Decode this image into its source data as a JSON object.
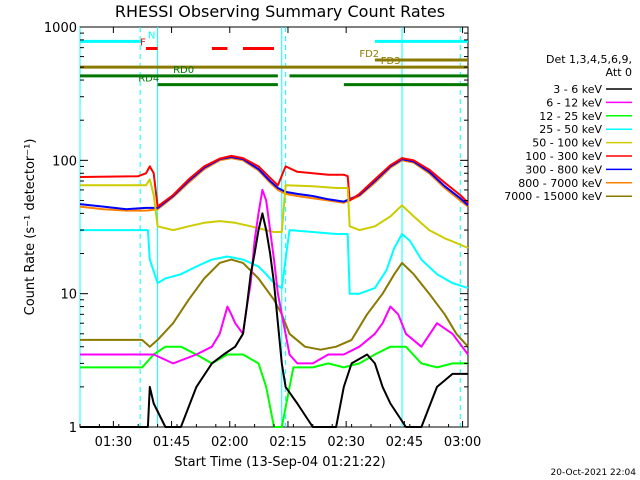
{
  "chart_data": {
    "type": "line",
    "title": "RHESSI Observing Summary Count Rates",
    "xlabel": "Start Time (13-Sep-04 01:21:22)",
    "ylabel": "Count Rate (s⁻¹ detector⁻¹)",
    "x_unit": "minutes after 01:21:22",
    "xlim": [
      0,
      100
    ],
    "ylim": [
      1,
      1000
    ],
    "y_scale": "log",
    "x_ticks": [
      {
        "x": 8.6,
        "label": "01:30"
      },
      {
        "x": 23.6,
        "label": "01:45"
      },
      {
        "x": 38.6,
        "label": "02:00"
      },
      {
        "x": 53.6,
        "label": "02:15"
      },
      {
        "x": 68.6,
        "label": "02:30"
      },
      {
        "x": 83.6,
        "label": "02:45"
      },
      {
        "x": 98.6,
        "label": "03:00"
      }
    ],
    "y_ticks": [
      {
        "y": 1,
        "label": "1"
      },
      {
        "y": 10,
        "label": "10"
      },
      {
        "y": 100,
        "label": "100"
      },
      {
        "y": 1000,
        "label": "1000"
      }
    ],
    "legend_header": [
      "Det 1,3,4,5,6,9,",
      "Att 0"
    ],
    "series": [
      {
        "name": "3 - 6 keV",
        "color": "#000000",
        "points": [
          [
            0,
            1
          ],
          [
            17.5,
            1
          ],
          [
            18,
            2
          ],
          [
            19,
            1.5
          ],
          [
            22,
            1
          ],
          [
            26,
            1
          ],
          [
            30,
            2
          ],
          [
            34,
            3
          ],
          [
            37,
            3.5
          ],
          [
            40,
            4
          ],
          [
            42,
            5
          ],
          [
            43,
            8
          ],
          [
            44,
            14
          ],
          [
            45,
            20
          ],
          [
            46,
            30
          ],
          [
            47,
            40
          ],
          [
            48,
            30
          ],
          [
            49,
            20
          ],
          [
            50,
            12
          ],
          [
            51,
            6
          ],
          [
            52,
            3
          ],
          [
            53,
            2
          ],
          [
            56,
            1.5
          ],
          [
            60,
            1
          ],
          [
            66,
            1
          ],
          [
            68,
            2
          ],
          [
            70,
            3
          ],
          [
            74,
            3.5
          ],
          [
            76,
            3
          ],
          [
            78,
            2
          ],
          [
            80,
            1.5
          ],
          [
            84,
            1
          ],
          [
            88,
            1
          ],
          [
            92,
            2
          ],
          [
            96,
            2.5
          ],
          [
            100,
            2.5
          ]
        ]
      },
      {
        "name": "6 - 12 keV",
        "color": "#ff00ff",
        "points": [
          [
            0,
            3.5
          ],
          [
            16,
            3.5
          ],
          [
            19,
            3.5
          ],
          [
            24,
            3
          ],
          [
            30,
            3.5
          ],
          [
            34,
            4
          ],
          [
            36,
            5
          ],
          [
            38,
            8
          ],
          [
            39,
            7
          ],
          [
            40,
            6
          ],
          [
            42,
            5
          ],
          [
            43,
            8
          ],
          [
            44,
            12
          ],
          [
            45,
            25
          ],
          [
            46,
            40
          ],
          [
            47,
            60
          ],
          [
            48,
            50
          ],
          [
            49,
            30
          ],
          [
            50,
            18
          ],
          [
            51,
            10
          ],
          [
            52,
            7
          ],
          [
            53,
            5
          ],
          [
            54,
            3.5
          ],
          [
            56,
            3
          ],
          [
            60,
            3
          ],
          [
            64,
            3.5
          ],
          [
            68,
            3.5
          ],
          [
            72,
            4
          ],
          [
            76,
            5
          ],
          [
            78,
            6
          ],
          [
            80,
            8
          ],
          [
            82,
            7
          ],
          [
            84,
            5
          ],
          [
            88,
            4
          ],
          [
            92,
            6
          ],
          [
            96,
            5
          ],
          [
            100,
            3.5
          ]
        ]
      },
      {
        "name": "12 - 25 keV",
        "color": "#00ff00",
        "points": [
          [
            0,
            2.8
          ],
          [
            16,
            2.8
          ],
          [
            19,
            3.5
          ],
          [
            22,
            4
          ],
          [
            26,
            4
          ],
          [
            30,
            3.5
          ],
          [
            34,
            3
          ],
          [
            38,
            3.5
          ],
          [
            42,
            3.5
          ],
          [
            46,
            3
          ],
          [
            48,
            2
          ],
          [
            50,
            1
          ],
          [
            52,
            1
          ],
          [
            55,
            2.8
          ],
          [
            60,
            2.8
          ],
          [
            64,
            3
          ],
          [
            68,
            2.8
          ],
          [
            72,
            3
          ],
          [
            76,
            3.5
          ],
          [
            80,
            4
          ],
          [
            84,
            4
          ],
          [
            88,
            3
          ],
          [
            92,
            2.8
          ],
          [
            96,
            3
          ],
          [
            100,
            3
          ]
        ]
      },
      {
        "name": "25 - 50 keV",
        "color": "#00ffff",
        "points": [
          [
            0,
            30
          ],
          [
            17.5,
            30
          ],
          [
            18,
            18
          ],
          [
            20,
            12
          ],
          [
            22,
            13
          ],
          [
            26,
            14
          ],
          [
            30,
            16
          ],
          [
            34,
            18
          ],
          [
            38,
            19
          ],
          [
            42,
            18
          ],
          [
            46,
            16
          ],
          [
            48,
            14
          ],
          [
            50,
            12
          ],
          [
            52,
            11
          ],
          [
            54,
            30
          ],
          [
            60,
            29
          ],
          [
            66,
            28
          ],
          [
            69,
            28
          ],
          [
            69.5,
            10
          ],
          [
            72,
            10
          ],
          [
            76,
            11
          ],
          [
            79,
            15
          ],
          [
            81,
            22
          ],
          [
            83,
            28
          ],
          [
            85,
            25
          ],
          [
            88,
            18
          ],
          [
            92,
            14
          ],
          [
            96,
            12
          ],
          [
            100,
            11
          ]
        ]
      },
      {
        "name": "50 - 100 keV",
        "color": "#cccc00",
        "points": [
          [
            0,
            65
          ],
          [
            17,
            65
          ],
          [
            18,
            72
          ],
          [
            19,
            55
          ],
          [
            20,
            32
          ],
          [
            24,
            30
          ],
          [
            28,
            32
          ],
          [
            32,
            34
          ],
          [
            36,
            35
          ],
          [
            40,
            34
          ],
          [
            44,
            32
          ],
          [
            48,
            30
          ],
          [
            50,
            29
          ],
          [
            52,
            29
          ],
          [
            53,
            65
          ],
          [
            60,
            64
          ],
          [
            66,
            62
          ],
          [
            69,
            62
          ],
          [
            69.5,
            32
          ],
          [
            72,
            30
          ],
          [
            76,
            32
          ],
          [
            80,
            38
          ],
          [
            83,
            46
          ],
          [
            86,
            38
          ],
          [
            90,
            30
          ],
          [
            94,
            26
          ],
          [
            97,
            24
          ],
          [
            100,
            22
          ]
        ]
      },
      {
        "name": "100 - 300 keV",
        "color": "#ff0000",
        "points": [
          [
            0,
            75
          ],
          [
            15,
            76
          ],
          [
            17,
            80
          ],
          [
            18,
            90
          ],
          [
            19,
            80
          ],
          [
            20,
            45
          ],
          [
            24,
            55
          ],
          [
            28,
            72
          ],
          [
            32,
            90
          ],
          [
            36,
            103
          ],
          [
            39,
            108
          ],
          [
            42,
            104
          ],
          [
            46,
            90
          ],
          [
            49,
            74
          ],
          [
            51,
            65
          ],
          [
            53,
            90
          ],
          [
            56,
            82
          ],
          [
            60,
            80
          ],
          [
            64,
            78
          ],
          [
            68,
            78
          ],
          [
            69,
            76
          ],
          [
            69.5,
            50
          ],
          [
            72,
            56
          ],
          [
            76,
            72
          ],
          [
            80,
            92
          ],
          [
            83,
            104
          ],
          [
            86,
            100
          ],
          [
            90,
            85
          ],
          [
            94,
            68
          ],
          [
            98,
            55
          ],
          [
            100,
            48
          ]
        ]
      },
      {
        "name": "300 - 800 keV",
        "color": "#0000ff",
        "points": [
          [
            0,
            47
          ],
          [
            6,
            45
          ],
          [
            12,
            43
          ],
          [
            17,
            44
          ],
          [
            20,
            44
          ],
          [
            24,
            54
          ],
          [
            28,
            70
          ],
          [
            32,
            88
          ],
          [
            36,
            102
          ],
          [
            39,
            106
          ],
          [
            42,
            102
          ],
          [
            46,
            86
          ],
          [
            49,
            70
          ],
          [
            51,
            62
          ],
          [
            53,
            58
          ],
          [
            56,
            56
          ],
          [
            60,
            54
          ],
          [
            64,
            51
          ],
          [
            68,
            49
          ],
          [
            72,
            55
          ],
          [
            76,
            70
          ],
          [
            80,
            90
          ],
          [
            83,
            102
          ],
          [
            86,
            98
          ],
          [
            90,
            82
          ],
          [
            94,
            64
          ],
          [
            98,
            52
          ],
          [
            100,
            46
          ]
        ]
      },
      {
        "name": "800 - 7000 keV",
        "color": "#ff8000",
        "points": [
          [
            0,
            45
          ],
          [
            6,
            43
          ],
          [
            12,
            42
          ],
          [
            17,
            42
          ],
          [
            20,
            43
          ],
          [
            24,
            53
          ],
          [
            28,
            68
          ],
          [
            32,
            86
          ],
          [
            36,
            100
          ],
          [
            39,
            104
          ],
          [
            42,
            100
          ],
          [
            46,
            84
          ],
          [
            49,
            68
          ],
          [
            51,
            60
          ],
          [
            53,
            56
          ],
          [
            56,
            54
          ],
          [
            60,
            52
          ],
          [
            64,
            50
          ],
          [
            68,
            48
          ],
          [
            72,
            54
          ],
          [
            76,
            68
          ],
          [
            80,
            88
          ],
          [
            83,
            100
          ],
          [
            86,
            96
          ],
          [
            90,
            80
          ],
          [
            94,
            62
          ],
          [
            98,
            50
          ],
          [
            100,
            45
          ]
        ]
      },
      {
        "name": "7000 - 15000 keV",
        "color": "#8b7a00",
        "points": [
          [
            0,
            4.5
          ],
          [
            10,
            4.5
          ],
          [
            16,
            4.5
          ],
          [
            18,
            4
          ],
          [
            20,
            4.5
          ],
          [
            24,
            6
          ],
          [
            28,
            9
          ],
          [
            32,
            13
          ],
          [
            36,
            17
          ],
          [
            39,
            18
          ],
          [
            42,
            17
          ],
          [
            46,
            13
          ],
          [
            50,
            9
          ],
          [
            52,
            7
          ],
          [
            54,
            5
          ],
          [
            58,
            4
          ],
          [
            62,
            3.8
          ],
          [
            66,
            4
          ],
          [
            70,
            4.5
          ],
          [
            74,
            7
          ],
          [
            78,
            10
          ],
          [
            81,
            14
          ],
          [
            83,
            17
          ],
          [
            86,
            14
          ],
          [
            90,
            10
          ],
          [
            94,
            7
          ],
          [
            97,
            5
          ],
          [
            100,
            4
          ]
        ]
      }
    ],
    "states": [
      {
        "label": "N",
        "color": "#00ffff",
        "y": 780,
        "label_at": 17.5,
        "segments": [
          [
            0,
            16
          ],
          [
            76,
            100
          ]
        ]
      },
      {
        "label": "F",
        "color": "#ff0000",
        "y": 690,
        "label_at": 15.5,
        "segments": [
          [
            17,
            20
          ],
          [
            34,
            38
          ],
          [
            42,
            50
          ]
        ]
      },
      {
        "label": "FD2",
        "color": "#8b7a00",
        "y": 565,
        "label_at": 72,
        "segments": [
          [
            76,
            100
          ]
        ]
      },
      {
        "label": "FD3",
        "color": "#8b7a00",
        "y": 500,
        "label_at": 77.5,
        "segments": [
          [
            0,
            100
          ]
        ]
      },
      {
        "label": "RD0",
        "color": "#007700",
        "y": 430,
        "label_at": 24,
        "segments": [
          [
            0,
            51
          ],
          [
            54,
            100
          ]
        ]
      },
      {
        "label": "RD4",
        "color": "#007700",
        "y": 370,
        "label_at": 15,
        "segments": [
          [
            20,
            51
          ],
          [
            68,
            100
          ]
        ]
      }
    ],
    "vlines_solid": [
      0,
      20,
      52,
      83
    ],
    "vlines_dashed": [
      15.5,
      53,
      98
    ]
  },
  "timestamp": "20-Oct-2021 22:04"
}
